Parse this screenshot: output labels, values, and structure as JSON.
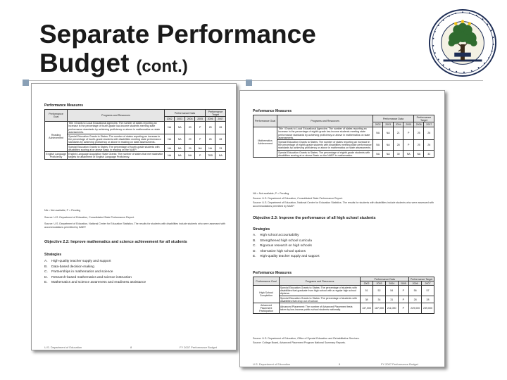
{
  "slide": {
    "title_line1": "Separate Performance",
    "title_line2": "Budget",
    "title_suffix": "(cont.)"
  },
  "page_left": {
    "section_heading": "Performance Measures",
    "col_goal": "Performance Goal",
    "col_programs": "Programs and Resources",
    "col_data": "Performance Data",
    "col_target": "Performance Target",
    "years": [
      "2002",
      "2003",
      "2004",
      "2005",
      "2006",
      "2007"
    ],
    "rows": [
      {
        "goal": "",
        "program": "Title I Grants to Local Educational Agencies: The number of states reporting an increase in the percentage of fourth-grade low-income students meeting state performance standards by achieving proficiency or above in mathematics on state assessments.",
        "values": [
          "NA",
          "NA",
          "20",
          "P",
          "25",
          "26"
        ]
      },
      {
        "goal": "Reading Achievement",
        "program": "Special Education Grants to States: The number of states reporting an increase in the percentage of fourth-grade students with disabilities meeting state performance standards by achieving proficiency or above in reading on state assessments.",
        "values": [
          "NA",
          "NA",
          "29",
          "P",
          "26",
          "28"
        ]
      },
      {
        "goal": "",
        "program": "Special Education Grants to States: The percentage of fourth-grade students with disabilities scoring at or above Basic in reading on the NAEP.",
        "values": [
          "NA",
          "NA",
          "29",
          "NA",
          "NA",
          "33"
        ]
      },
      {
        "goal": "English Language Proficiency",
        "program": "English Language Acquisition State Grants: The number of states that met statewide targets for attainment of English Language Proficiency.",
        "values": [
          "NA",
          "NA",
          "NA",
          "P",
          "TBD",
          "NA"
        ]
      }
    ],
    "legend": "NA = Not available; P = Pending",
    "source1": "Source: U.S. Department of Education, Consolidated State Performance Report.",
    "source2": "Source: U.S. Department of Education, National Center for Education Statistics. The results for students with disabilities include students who were assessed with accommodations permitted by NAEP.",
    "objective": "Objective 2.2: Improve mathematics and science achievement for all students",
    "strategies_heading": "Strategies",
    "strategies": [
      {
        "letter": "A.",
        "text": "High-quality teacher supply and support"
      },
      {
        "letter": "B.",
        "text": "Data-based decision-making"
      },
      {
        "letter": "C.",
        "text": "Partnerships in mathematics and science"
      },
      {
        "letter": "D.",
        "text": "Research-based mathematics and science instruction"
      },
      {
        "letter": "E.",
        "text": "Mathematics and science awareness and readiness assistance"
      }
    ],
    "footer_left": "U.S. Department of Education",
    "footer_page": "8",
    "footer_right": "FY 2007 Performance Budget"
  },
  "page_right": {
    "section_heading": "Performance Measures",
    "col_goal": "Performance Goal",
    "col_programs": "Programs and Resources",
    "col_data": "Performance Data",
    "col_target": "Performance Target",
    "years": [
      "2002",
      "2003",
      "2004",
      "2005",
      "2006",
      "2007"
    ],
    "rows": [
      {
        "goal": "",
        "program": "Title I Grants to Local Educational Agencies: The number of states reporting an increase in the percentage of eighth-grade low-income students meeting state performance standards by achieving proficiency or above in mathematics on state assessments.",
        "values": [
          "NA",
          "NA",
          "21",
          "P",
          "25",
          "26"
        ]
      },
      {
        "goal": "Mathematics Achievement",
        "program": "Special Education Grants to States: The number of states reporting an increase in the percentage of eighth-grade students with disabilities meeting state performance standards by achieving proficiency or above in mathematics on state assessments.",
        "values": [
          "NA",
          "NA",
          "28",
          "P",
          "25",
          "26"
        ]
      },
      {
        "goal": "",
        "program": "Special Education Grants to States: The percentage of eighth-grade students with disabilities scoring at or above Basic on the NAEP in mathematics.",
        "values": [
          "NA",
          "NA",
          "30",
          "NA",
          "NA",
          "32"
        ]
      }
    ],
    "legend": "NA = Not available; P = Pending",
    "source1": "Source: U.S. Department of Education, Consolidated State Performance Report.",
    "source2": "Source: U.S. Department of Education, National Center for Education Statistics. The results for students with disabilities include students who were assessed with accommodations permitted by NAEP.",
    "objective": "Objective 2.3: Improve the performance of all high school students",
    "strategies_heading": "Strategies",
    "strategies": [
      {
        "letter": "A.",
        "text": "High school accountability"
      },
      {
        "letter": "B.",
        "text": "Strengthened high school curricula"
      },
      {
        "letter": "C.",
        "text": "Rigorous research on high schools"
      },
      {
        "letter": "D.",
        "text": "Alternative high school options"
      },
      {
        "letter": "E.",
        "text": "High-quality teacher supply and support"
      }
    ],
    "section_heading2": "Performance Measures",
    "rows2": [
      {
        "goal": "High School Completion",
        "program": "Special Education Grants to States: The percentage of students with disabilities that graduate from high school with a regular high school diploma.",
        "values": [
          "51",
          "52",
          "54",
          "P",
          "56",
          "57"
        ]
      },
      {
        "goal": "",
        "program": "Special Education Grants to States: The percentage of students with disabilities that drop out of school.",
        "values": [
          "38",
          "34",
          "31",
          "P",
          "28",
          "28"
        ]
      },
      {
        "goal": "Advanced Placement Participation",
        "program": "Advanced Placement: The number of Advanced Placement tests taken by low-income public school students nationally.",
        "values": [
          "137,000",
          "187,000",
          "211,000",
          "P",
          "229,000",
          "239,000"
        ]
      }
    ],
    "source3": "Source: U.S. Department of Education, Office of Special Education and Rehabilitative Services.",
    "source4": "Source: College Board, Advanced Placement Program National Summary Reports.",
    "footer_left": "U.S. Department of Education",
    "footer_page": "9",
    "footer_right": "FY 2007 Performance Budget"
  }
}
